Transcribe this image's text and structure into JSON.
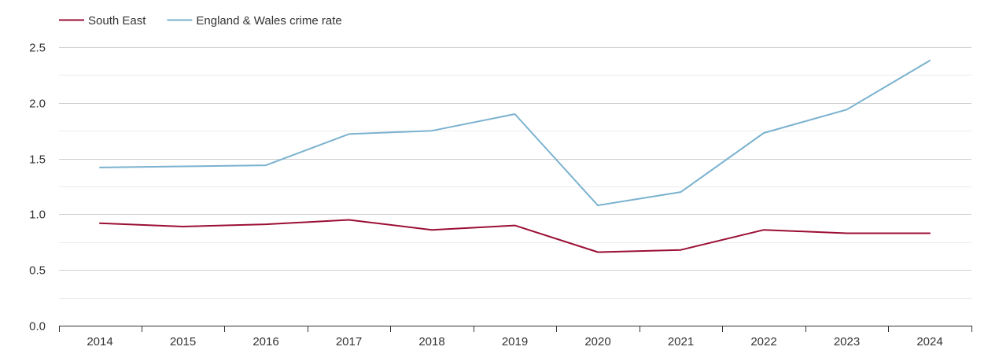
{
  "chart_data": {
    "type": "line",
    "title": "",
    "xlabel": "",
    "ylabel": "",
    "categories": [
      "2014",
      "2015",
      "2016",
      "2017",
      "2018",
      "2019",
      "2020",
      "2021",
      "2022",
      "2023",
      "2024"
    ],
    "series": [
      {
        "name": "South East",
        "color": "#9b0e34",
        "values": [
          0.92,
          0.89,
          0.91,
          0.95,
          0.86,
          0.9,
          0.66,
          0.68,
          0.86,
          0.83,
          0.83
        ]
      },
      {
        "name": "England & Wales crime rate",
        "color": "#7ab2cf",
        "values": [
          1.42,
          1.43,
          1.44,
          1.72,
          1.75,
          1.9,
          1.08,
          1.2,
          1.73,
          1.94,
          2.38
        ]
      }
    ],
    "ylim": [
      0,
      2.5
    ],
    "yticks": [
      "0.0",
      "0.5",
      "1.0",
      "1.5",
      "2.0",
      "2.5"
    ],
    "yticks_values": [
      0,
      0.5,
      1.0,
      1.5,
      2.0,
      2.5
    ],
    "grid": true,
    "legend_position": "top-left"
  }
}
